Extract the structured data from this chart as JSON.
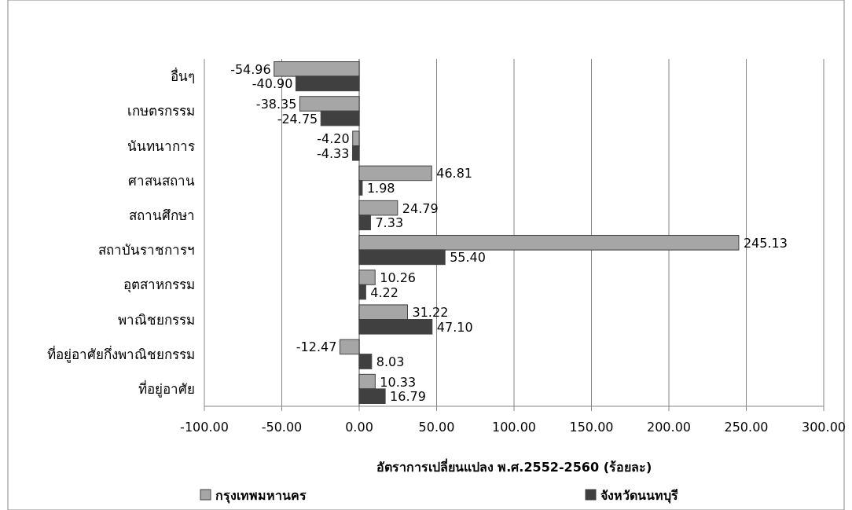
{
  "chart_data": {
    "type": "bar",
    "orientation": "horizontal",
    "categories": [
      "อื่นๆ",
      "เกษตรกรรม",
      "นันทนาการ",
      "ศาสนสถาน",
      "สถานศึกษา",
      "สถาบันราชการฯ",
      "อุตสาหกรรม",
      "พาณิชยกรรม",
      "ที่อยู่อาศัยกึ่งพาณิชยกรรม",
      "ที่อยู่อาศัย"
    ],
    "series": [
      {
        "name": "กรุงเทพมหานคร",
        "color": "#a6a6a6",
        "values": [
          -54.96,
          -38.35,
          -4.2,
          46.81,
          24.79,
          245.13,
          10.26,
          31.22,
          -12.47,
          10.33
        ],
        "value_labels": [
          "-54.96",
          "-38.35",
          "-4.20",
          "46.81",
          "24.79",
          "245.13",
          "10.26",
          "31.22",
          "-12.47",
          "10.33"
        ]
      },
      {
        "name": "จังหวัดนนทบุรี",
        "color": "#404040",
        "values": [
          -40.9,
          -24.75,
          -4.33,
          1.98,
          7.33,
          55.4,
          4.22,
          47.1,
          8.03,
          16.79
        ],
        "value_labels": [
          "-40.90",
          "-24.75",
          "-4.33",
          "1.98",
          "7.33",
          "55.40",
          "4.22",
          "47.10",
          "8.03",
          "16.79"
        ]
      }
    ],
    "xlim": [
      -100,
      300
    ],
    "xticks": [
      {
        "value": -100,
        "label": "-100.00"
      },
      {
        "value": -50,
        "label": "-50.00"
      },
      {
        "value": 0,
        "label": "0.00"
      },
      {
        "value": 50,
        "label": "50.00"
      },
      {
        "value": 100,
        "label": "100.00"
      },
      {
        "value": 150,
        "label": "150.00"
      },
      {
        "value": 200,
        "label": "200.00"
      },
      {
        "value": 250,
        "label": "250.00"
      },
      {
        "value": 300,
        "label": "300.00"
      }
    ],
    "xlabel": "อัตราการเปลี่ยนแปลง พ.ศ.2552-2560 (ร้อยละ)",
    "grid": "x",
    "legend": "bottom"
  }
}
